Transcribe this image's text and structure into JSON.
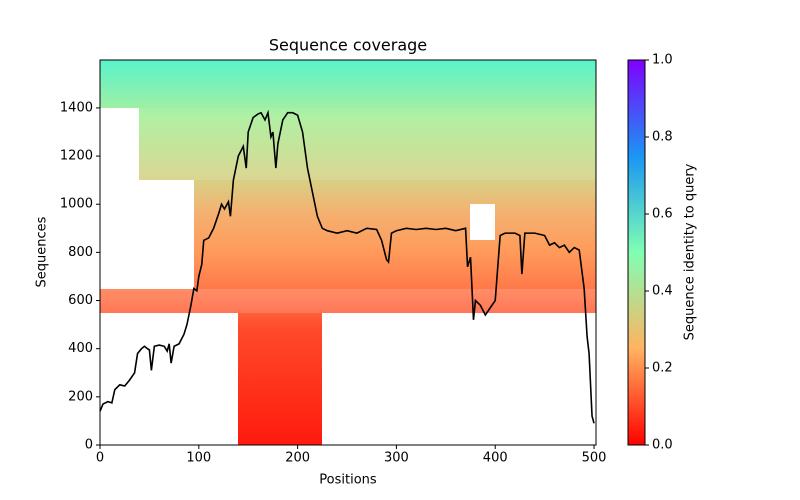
{
  "chart_data": {
    "type": "line",
    "title": "Sequence coverage",
    "x_label": "Positions",
    "y_label": "Sequences",
    "x": [
      0,
      3,
      8,
      12,
      15,
      20,
      25,
      30,
      35,
      38,
      42,
      45,
      48,
      50,
      52,
      55,
      60,
      65,
      68,
      70,
      72,
      75,
      80,
      85,
      88,
      92,
      95,
      98,
      100,
      103,
      105,
      110,
      115,
      120,
      123,
      126,
      130,
      132,
      135,
      140,
      145,
      148,
      150,
      155,
      160,
      163,
      167,
      170,
      173,
      175,
      178,
      180,
      185,
      190,
      195,
      200,
      205,
      210,
      215,
      220,
      225,
      230,
      240,
      250,
      260,
      270,
      280,
      285,
      290,
      292,
      295,
      300,
      310,
      320,
      330,
      340,
      350,
      360,
      370,
      372,
      375,
      378,
      380,
      385,
      390,
      395,
      400,
      405,
      410,
      420,
      425,
      427,
      430,
      440,
      450,
      455,
      460,
      465,
      470,
      475,
      480,
      485,
      490,
      493,
      495,
      498,
      500
    ],
    "values": [
      140,
      170,
      180,
      175,
      230,
      250,
      245,
      270,
      300,
      380,
      400,
      410,
      400,
      395,
      310,
      410,
      415,
      410,
      390,
      420,
      340,
      410,
      420,
      460,
      500,
      580,
      650,
      640,
      700,
      750,
      850,
      860,
      900,
      960,
      1000,
      980,
      1010,
      950,
      1100,
      1200,
      1240,
      1150,
      1300,
      1360,
      1375,
      1380,
      1350,
      1380,
      1280,
      1300,
      1150,
      1250,
      1350,
      1380,
      1380,
      1370,
      1300,
      1150,
      1050,
      950,
      900,
      890,
      880,
      890,
      880,
      900,
      895,
      850,
      770,
      760,
      880,
      890,
      900,
      895,
      900,
      895,
      900,
      890,
      900,
      740,
      780,
      520,
      600,
      580,
      540,
      570,
      600,
      870,
      880,
      880,
      870,
      710,
      880,
      880,
      870,
      830,
      840,
      820,
      830,
      800,
      820,
      810,
      650,
      450,
      380,
      120,
      90
    ],
    "color": "#000000",
    "xlim": [
      0,
      502
    ],
    "xticks": [
      0,
      100,
      200,
      300,
      400,
      500
    ],
    "ylim": [
      0,
      1599
    ],
    "yticks": [
      0,
      200,
      400,
      600,
      800,
      1000,
      1200,
      1400
    ],
    "colorbar": {
      "label": "Sequence identity to query",
      "lim": [
        0,
        1
      ],
      "ticks": [
        {
          "value": 0,
          "label": "0.0"
        },
        {
          "value": 0.2,
          "label": "0.2"
        },
        {
          "value": 0.4,
          "label": "0.4"
        },
        {
          "value": 0.6,
          "label": "0.6"
        },
        {
          "value": 0.8,
          "label": "0.8"
        },
        {
          "value": 1,
          "label": "1.0"
        }
      ]
    }
  }
}
